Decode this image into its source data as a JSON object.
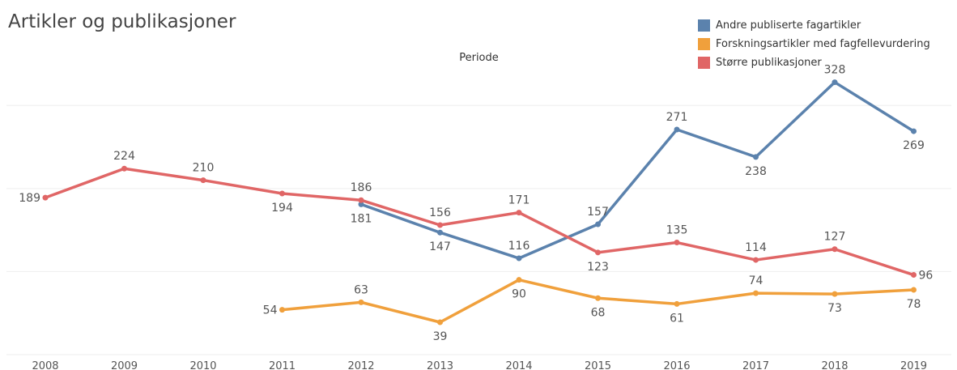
{
  "chart_data": {
    "type": "line",
    "title": "Artikler og publikasjoner",
    "x_header": "Periode",
    "x": [
      "2008",
      "2009",
      "2010",
      "2011",
      "2012",
      "2013",
      "2014",
      "2015",
      "2016",
      "2017",
      "2018",
      "2019"
    ],
    "ylim": [
      0,
      350
    ],
    "grid": true,
    "legend_position": "top-right",
    "series": [
      {
        "name": "Andre publiserte fagartikler",
        "color": "#5b82ad",
        "values": [
          null,
          null,
          null,
          null,
          181,
          147,
          116,
          157,
          271,
          238,
          328,
          269
        ],
        "label_pos": [
          null,
          null,
          null,
          null,
          "below",
          "below",
          "above",
          "above",
          "above",
          "below",
          "above",
          "below"
        ]
      },
      {
        "name": "Forskningsartikler med fagfellevurdering",
        "color": "#f0a03c",
        "values": [
          null,
          null,
          null,
          54,
          63,
          39,
          90,
          68,
          61,
          74,
          73,
          78
        ],
        "label_pos": [
          null,
          null,
          null,
          "left",
          "above",
          "below",
          "below",
          "below",
          "below",
          "above",
          "below",
          "below"
        ]
      },
      {
        "name": "Større publikasjoner",
        "color": "#e06666",
        "values": [
          189,
          224,
          210,
          194,
          186,
          156,
          171,
          123,
          135,
          114,
          127,
          96
        ],
        "label_pos": [
          "left",
          "above",
          "above",
          "below",
          "above",
          "above",
          "above",
          "below",
          "above",
          "above",
          "above",
          "right"
        ]
      }
    ]
  }
}
